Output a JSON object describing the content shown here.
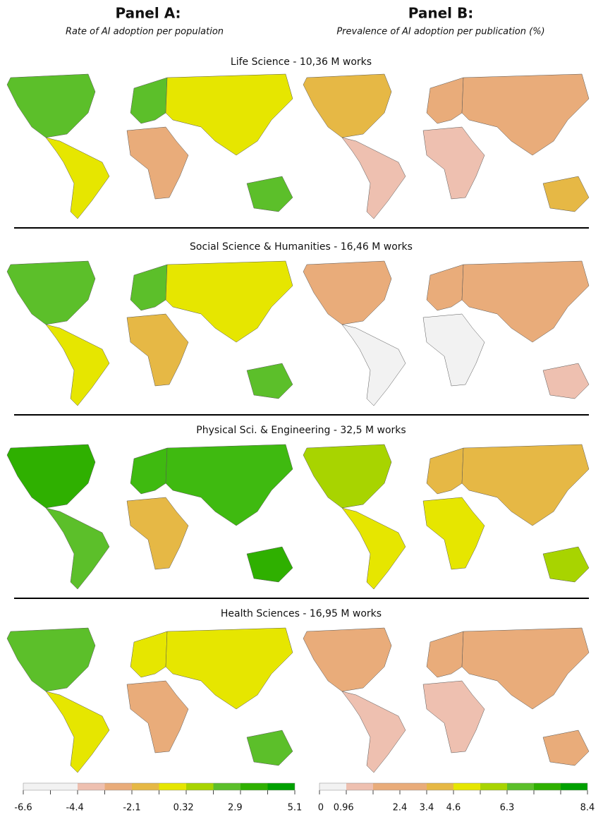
{
  "panels": [
    {
      "title": "Panel A:",
      "subtitle": "Rate of AI adoption per population"
    },
    {
      "title": "Panel B:",
      "subtitle": "Prevalence of AI adoption per publication (%)"
    }
  ],
  "sections": [
    "Life Science - 10,36 M works",
    "Social Science & Humanities - 16,46 M works",
    "Physical Sci. & Engineering - 32,5 M works",
    "Health Sciences - 16,95 M works"
  ],
  "colorbars": [
    {
      "colors": [
        "#f2f2f2",
        "#f2f2f2",
        "#eec0b0",
        "#e9ac7a",
        "#e6b845",
        "#e6e600",
        "#a8d400",
        "#5cbf2a",
        "#2fb000",
        "#00a000"
      ],
      "ticks": [
        -6.6,
        -4.4,
        -2.1,
        0.32,
        2.9,
        5.1
      ]
    },
    {
      "colors": [
        "#f2f2f2",
        "#eec0b0",
        "#e9ac7a",
        "#e9ac7a",
        "#e6b845",
        "#e6e600",
        "#a8d400",
        "#5cbf2a",
        "#2fb000",
        "#00a000"
      ],
      "ticks": [
        0,
        0.96,
        2.4,
        3.4,
        4.6,
        6.3,
        8.4
      ]
    }
  ]
}
